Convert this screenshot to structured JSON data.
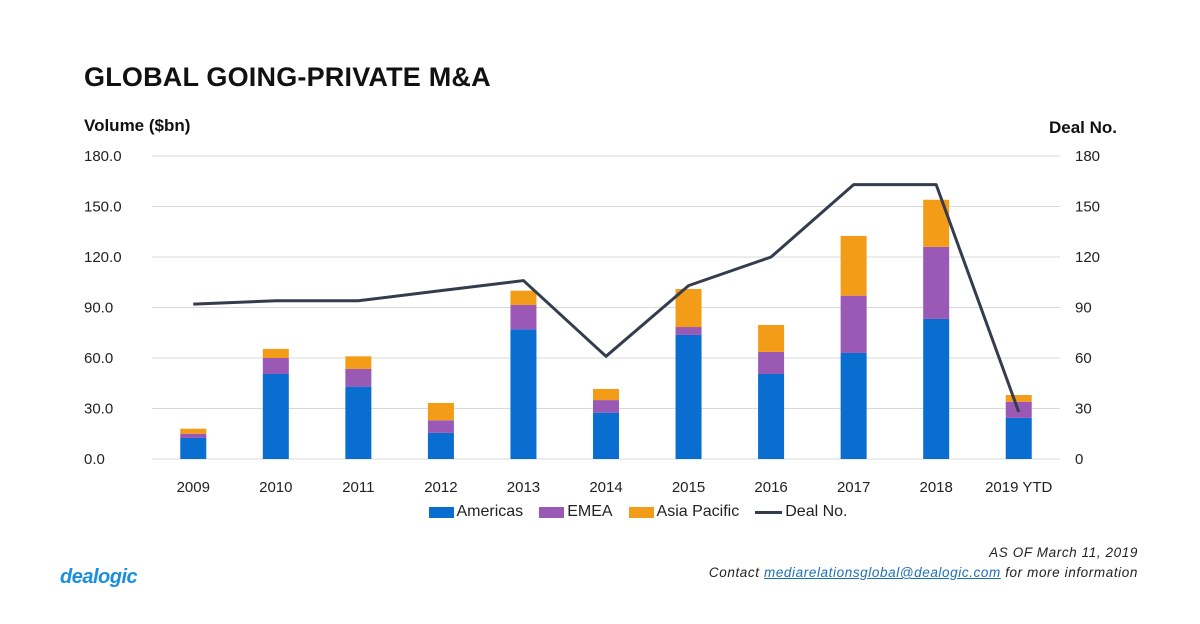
{
  "chart_data": {
    "type": "bar",
    "stacked": true,
    "title": "GLOBAL GOING-PRIVATE M&A",
    "ylabel": "Volume ($bn)",
    "y2label": "Deal No.",
    "xlabel": "",
    "categories": [
      "2009",
      "2010",
      "2011",
      "2012",
      "2013",
      "2014",
      "2015",
      "2016",
      "2017",
      "2018",
      "2019 YTD"
    ],
    "series": [
      {
        "name": "Americas",
        "type": "bar",
        "axis": "left",
        "color": "#0a6ed1",
        "values": [
          12.5,
          50.5,
          43.0,
          15.5,
          77.0,
          27.5,
          73.7,
          50.5,
          63.0,
          83.2,
          24.4
        ]
      },
      {
        "name": "EMEA",
        "type": "bar",
        "axis": "left",
        "color": "#9b59b6",
        "values": [
          2.5,
          9.5,
          10.5,
          7.5,
          14.5,
          7.5,
          4.7,
          13.1,
          34.0,
          42.8,
          9.6
        ]
      },
      {
        "name": "Asia Pacific",
        "type": "bar",
        "axis": "left",
        "color": "#f39c18",
        "values": [
          3.0,
          5.4,
          7.5,
          10.3,
          8.5,
          6.6,
          22.6,
          16.0,
          35.5,
          28.0,
          4.0
        ]
      },
      {
        "name": "Deal No.",
        "type": "line",
        "axis": "right",
        "color": "#353c4d",
        "values": [
          92,
          94,
          94,
          100,
          106,
          61,
          103,
          120,
          163,
          163,
          28
        ]
      }
    ],
    "ylim": [
      0,
      180
    ],
    "yticks": [
      "0.0",
      "30.0",
      "60.0",
      "90.0",
      "120.0",
      "150.0",
      "180.0"
    ],
    "y2lim": [
      0,
      180
    ],
    "y2ticks": [
      "0",
      "30",
      "60",
      "90",
      "120",
      "150",
      "180"
    ],
    "grid": true,
    "legend_position": "bottom"
  },
  "footer": {
    "as_of": "AS OF March 11, 2019",
    "contact_prefix": "Contact ",
    "contact_email": "mediarelationsglobal@dealogic.com",
    "contact_suffix": " for more information",
    "logo": "dealogic"
  }
}
